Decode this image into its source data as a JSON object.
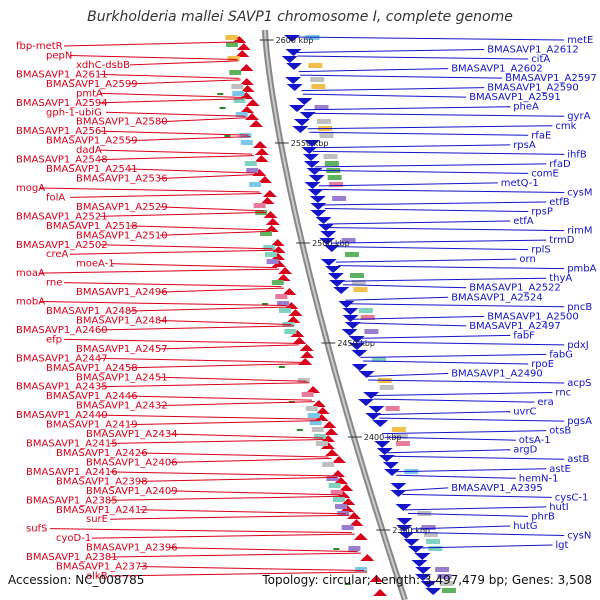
{
  "title": "Burkholderia mallei SAVP1 chromosome I, complete genome",
  "accession_label": "Accession: NC_008785",
  "topology_label": "Topology: circular; Length: 3,497,479 bp; Genes: 3,508",
  "colors": {
    "forward_strand": "#d9001b",
    "reverse_strand": "#1414c8",
    "backbone": "#888888",
    "tick_marker": "#2a8a2a"
  },
  "scale_ticks": [
    "2600 kbp",
    "2550 kbp",
    "2500 kbp",
    "2450 kbp",
    "2400 kbp",
    "2350 kbp"
  ],
  "left_labels": [
    "fbp-metR",
    "pepN",
    "xdhC-dsbB",
    "BMASAVP1_A2611",
    "BMASAVP1_A2599",
    "pmtA",
    "BMASAVP1_A2594",
    "gph-1-ubiG",
    "BMASAVP1_A2580",
    "BMASAVP1_A2561",
    "BMASAVP1_A2559",
    "dadA",
    "BMASAVP1_A2548",
    "BMASAVP1_A2541",
    "BMASAVP1_A2536",
    "mogA",
    "folA",
    "BMASAVP1_A2529",
    "BMASAVP1_A2521",
    "BMASAVP1_A2518",
    "BMASAVP1_A2510",
    "BMASAVP1_A2502",
    "creA",
    "moeA-1",
    "moaA",
    "rne",
    "BMASAVP1_A2496",
    "mobA",
    "BMASAVP1_A2485",
    "BMASAVP1_A2484",
    "BMASAVP1_A2460",
    "efp",
    "BMASAVP1_A2457",
    "BMASAVP1_A2447",
    "BMASAVP1_A2458",
    "BMASAVP1_A2451",
    "BMASAVP1_A2435",
    "BMASAVP1_A2446",
    "BMASAVP1_A2432",
    "BMASAVP1_A2440",
    "BMASAVP1_A2419",
    "BMASAVP1_A2434",
    "BMASAVP1_A2415",
    "BMASAVP1_A2426",
    "BMASAVP1_A2406",
    "BMASAVP1_A2416",
    "BMASAVP1_A2398",
    "BMASAVP1_A2409",
    "BMASAVP1_A2385",
    "BMASAVP1_A2412",
    "surE",
    "sufS",
    "cyoD-1",
    "BMASAVP1_A2396",
    "BMASAVP1_A2381",
    "BMASAVP1_A2373",
    "alkB"
  ],
  "right_labels": [
    "metE",
    "BMASAVP1_A2612",
    "citA",
    "BMASAVP1_A2602",
    "BMASAVP1_A2597",
    "BMASAVP1_A2590",
    "BMASAVP1_A2591",
    "pheA",
    "gyrA",
    "cmk",
    "rfaE",
    "rpsA",
    "ihfB",
    "rfaD",
    "comE",
    "metQ-1",
    "cysM",
    "etfB",
    "rpsP",
    "etfA",
    "rimM",
    "trmD",
    "rplS",
    "orn",
    "pmbA",
    "thyA",
    "BMASAVP1_A2522",
    "BMASAVP1_A2524",
    "pncB",
    "BMASAVP1_A2500",
    "BMASAVP1_A2497",
    "fabF",
    "pdxJ",
    "fabG",
    "rpoE",
    "BMASAVP1_A2490",
    "acpS",
    "rnc",
    "era",
    "uvrC",
    "pgsA",
    "otsB",
    "otsA-1",
    "argD",
    "astB",
    "astE",
    "hemN-1",
    "BMASAVP1_A2395",
    "cysC-1",
    "hutI",
    "phrB",
    "hutG",
    "cysN",
    "lgt"
  ]
}
